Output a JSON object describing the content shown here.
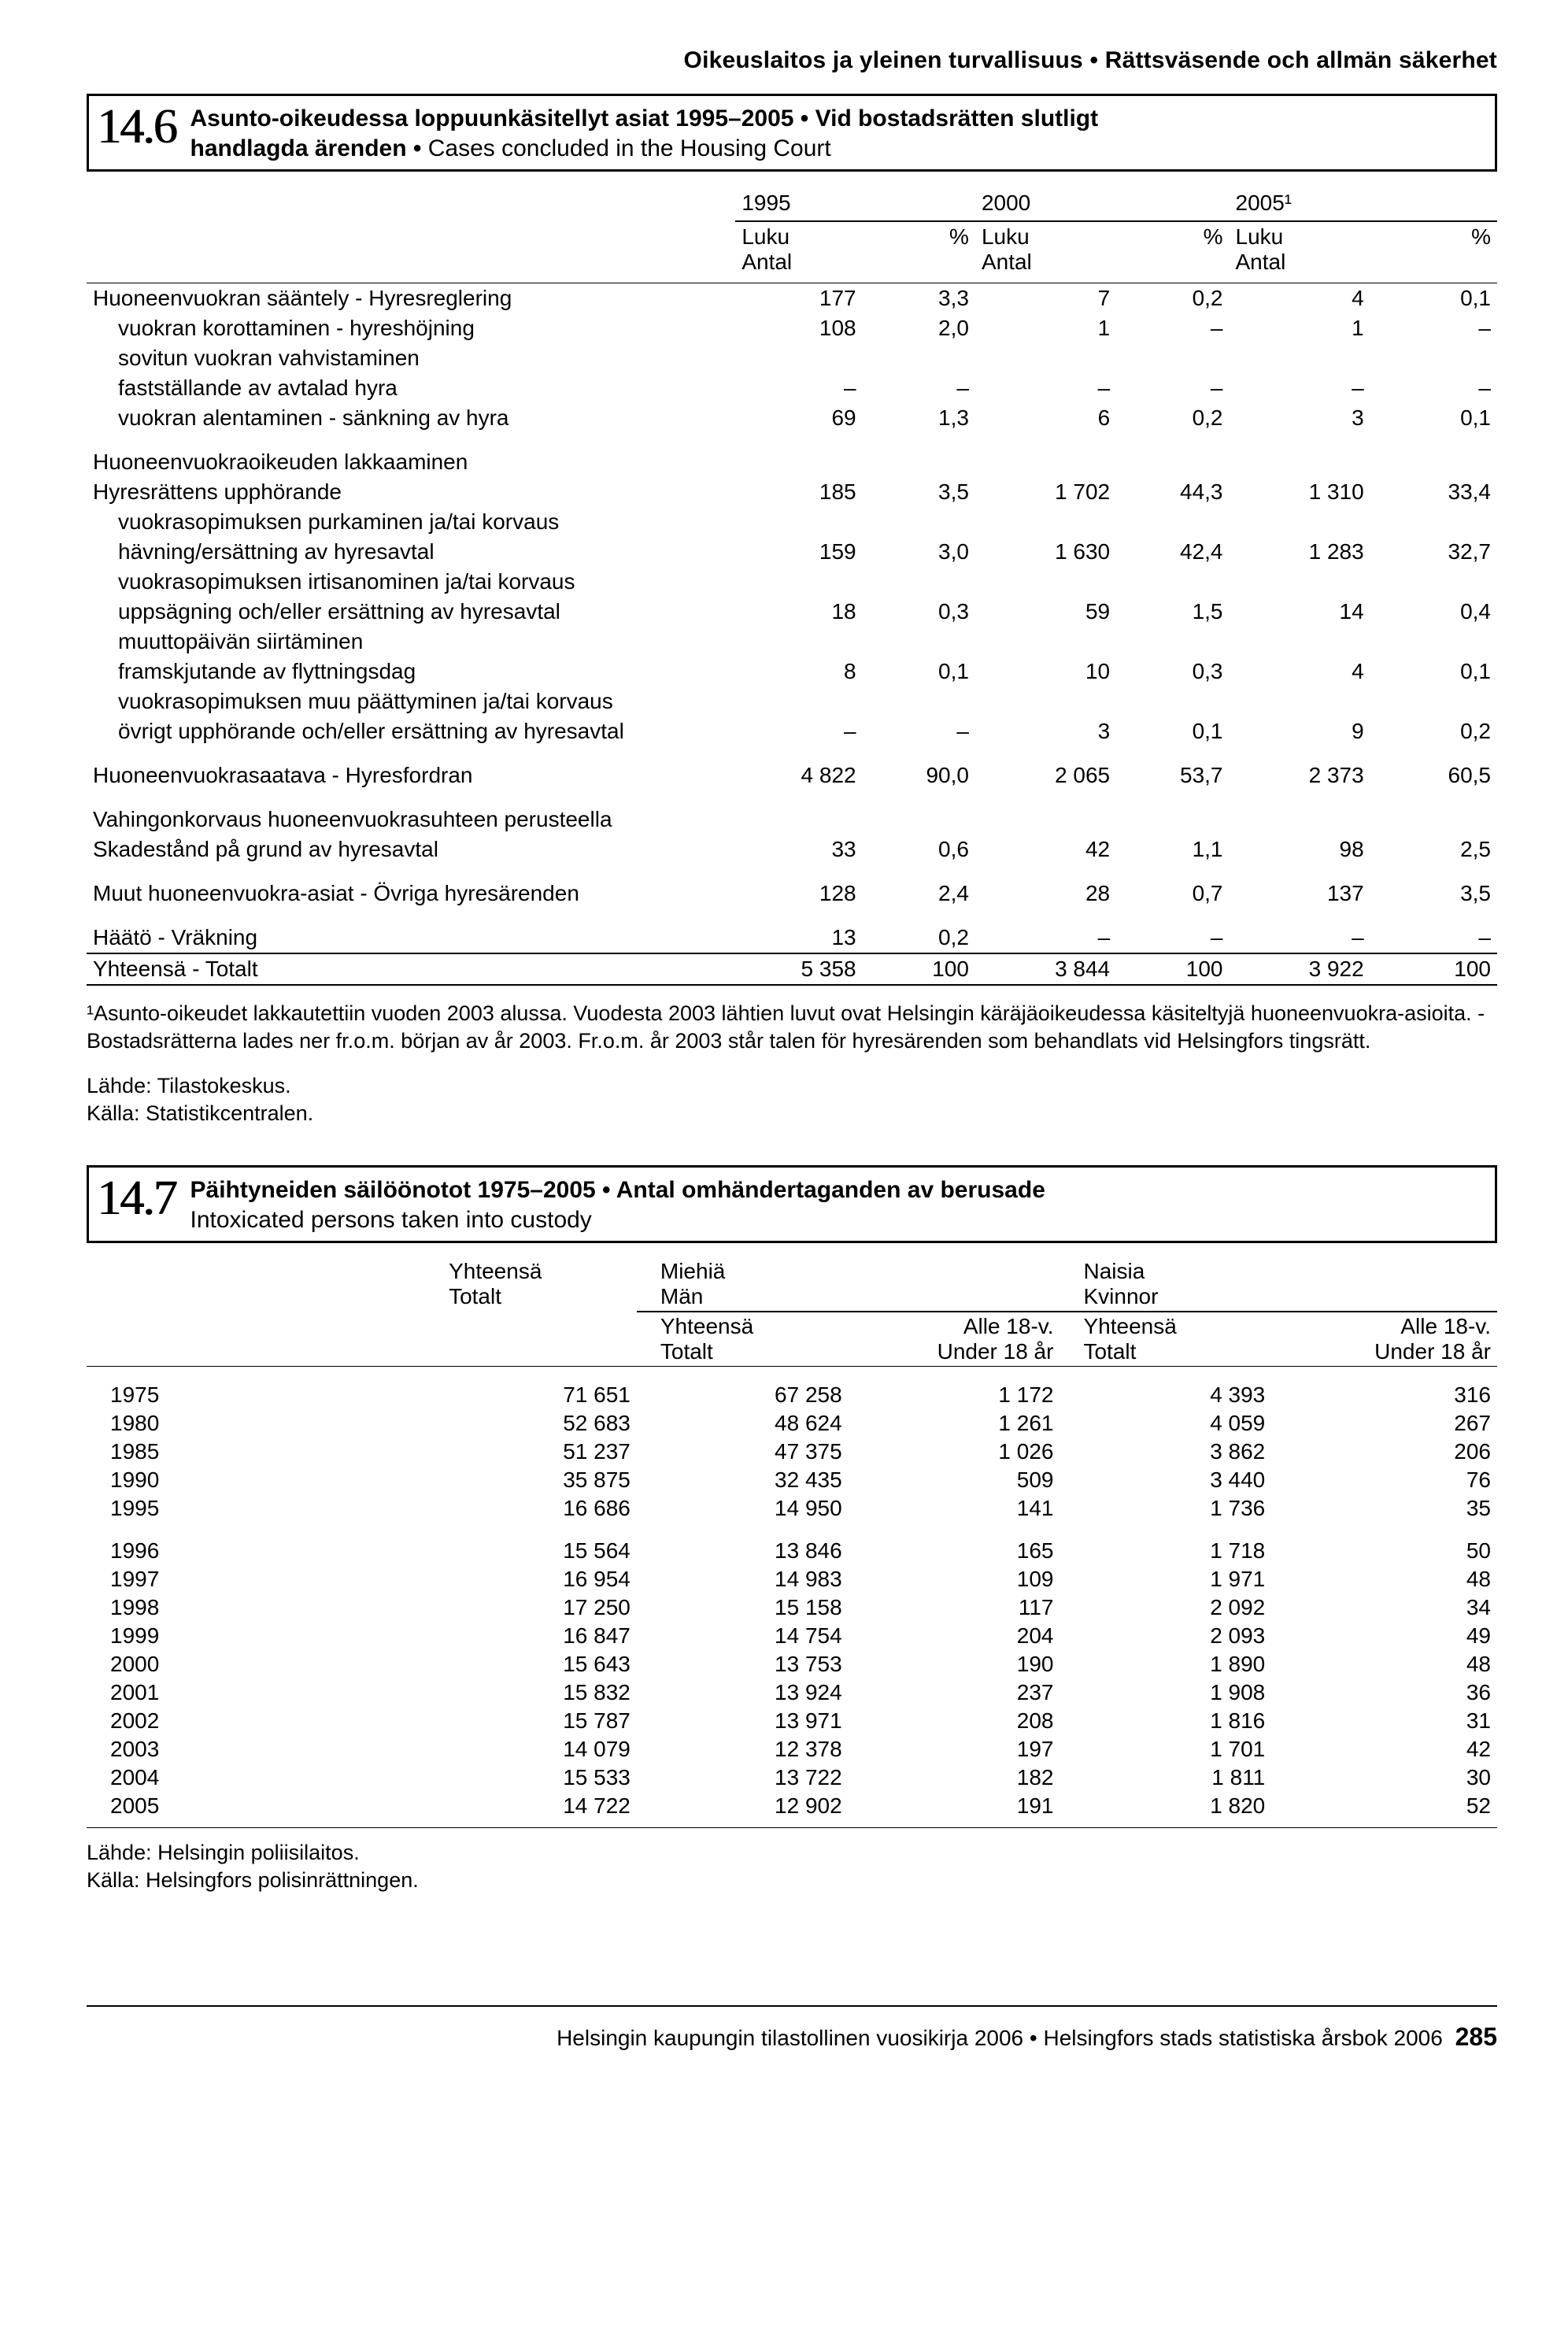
{
  "page_header": "Oikeuslaitos ja yleinen turvallisuus • Rättsväsende och allmän säkerhet",
  "section146": {
    "number": "14.6",
    "title_bold1": "Asunto-oikeudessa loppuunkäsitellyt asiat 1995–2005 • Vid bostadsrätten slutligt",
    "title_bold2": "handlagda ärenden • ",
    "title_plain": "Cases concluded in the Housing Court"
  },
  "t146": {
    "years": [
      "1995",
      "2000",
      "2005¹"
    ],
    "subhead_luku": "Luku",
    "subhead_antal": "Antal",
    "subhead_pct": "%",
    "rows": [
      {
        "label": "Huoneenvuokran sääntely - Hyresreglering",
        "indent": 0,
        "v": [
          "177",
          "3,3",
          "7",
          "0,2",
          "4",
          "0,1"
        ]
      },
      {
        "label": "vuokran korottaminen - hyreshöjning",
        "indent": 1,
        "v": [
          "108",
          "2,0",
          "1",
          "–",
          "1",
          "–"
        ]
      },
      {
        "label": "sovitun vuokran vahvistaminen",
        "indent": 1,
        "v": [
          "",
          "",
          "",
          "",
          "",
          ""
        ]
      },
      {
        "label": "fastställande av avtalad hyra",
        "indent": 1,
        "v": [
          "–",
          "–",
          "–",
          "–",
          "–",
          "–"
        ]
      },
      {
        "label": "vuokran alentaminen - sänkning av hyra",
        "indent": 1,
        "v": [
          "69",
          "1,3",
          "6",
          "0,2",
          "3",
          "0,1"
        ]
      },
      {
        "spacer": true
      },
      {
        "label": "Huoneenvuokraoikeuden lakkaaminen",
        "indent": 0,
        "v": [
          "",
          "",
          "",
          "",
          "",
          ""
        ]
      },
      {
        "label": "Hyresrättens upphörande",
        "indent": 0,
        "v": [
          "185",
          "3,5",
          "1 702",
          "44,3",
          "1 310",
          "33,4"
        ]
      },
      {
        "label": "vuokrasopimuksen purkaminen ja/tai korvaus",
        "indent": 1,
        "v": [
          "",
          "",
          "",
          "",
          "",
          ""
        ]
      },
      {
        "label": "hävning/ersättning av hyresavtal",
        "indent": 1,
        "v": [
          "159",
          "3,0",
          "1 630",
          "42,4",
          "1 283",
          "32,7"
        ]
      },
      {
        "label": "vuokrasopimuksen irtisanominen ja/tai korvaus",
        "indent": 1,
        "v": [
          "",
          "",
          "",
          "",
          "",
          ""
        ]
      },
      {
        "label": "uppsägning och/eller ersättning av hyresavtal",
        "indent": 1,
        "v": [
          "18",
          "0,3",
          "59",
          "1,5",
          "14",
          "0,4"
        ]
      },
      {
        "label": "muuttopäivän siirtäminen",
        "indent": 1,
        "v": [
          "",
          "",
          "",
          "",
          "",
          ""
        ]
      },
      {
        "label": "framskjutande av flyttningsdag",
        "indent": 1,
        "v": [
          "8",
          "0,1",
          "10",
          "0,3",
          "4",
          "0,1"
        ]
      },
      {
        "label": "vuokrasopimuksen muu päättyminen ja/tai korvaus",
        "indent": 1,
        "v": [
          "",
          "",
          "",
          "",
          "",
          ""
        ]
      },
      {
        "label": "övrigt upphörande och/eller ersättning av hyresavtal",
        "indent": 1,
        "v": [
          "–",
          "–",
          "3",
          "0,1",
          "9",
          "0,2"
        ]
      },
      {
        "spacer": true
      },
      {
        "label": "Huoneenvuokrasaatava - Hyresfordran",
        "indent": 0,
        "v": [
          "4 822",
          "90,0",
          "2 065",
          "53,7",
          "2 373",
          "60,5"
        ]
      },
      {
        "spacer": true
      },
      {
        "label": "Vahingonkorvaus huoneenvuokrasuhteen perusteella",
        "indent": 0,
        "v": [
          "",
          "",
          "",
          "",
          "",
          ""
        ]
      },
      {
        "label": "Skadestånd på grund av hyresavtal",
        "indent": 0,
        "v": [
          "33",
          "0,6",
          "42",
          "1,1",
          "98",
          "2,5"
        ]
      },
      {
        "spacer": true
      },
      {
        "label": "Muut huoneenvuokra-asiat - Övriga hyresärenden",
        "indent": 0,
        "v": [
          "128",
          "2,4",
          "28",
          "0,7",
          "137",
          "3,5"
        ]
      },
      {
        "spacer": true
      },
      {
        "label": "Häätö - Vräkning",
        "indent": 0,
        "v": [
          "13",
          "0,2",
          "–",
          "–",
          "–",
          "–"
        ]
      }
    ],
    "total": {
      "label": "Yhteensä - Totalt",
      "v": [
        "5 358",
        "100",
        "3 844",
        "100",
        "3 922",
        "100"
      ]
    }
  },
  "footnote146": "¹Asunto-oikeudet lakkautettiin vuoden 2003 alussa. Vuodesta 2003 lähtien luvut ovat Helsingin käräjäoikeudessa käsiteltyjä huoneenvuokra-asioita. - Bostadsrätterna lades ner fr.o.m. början av år 2003. Fr.o.m. år 2003 står talen för hyresärenden som behandlats vid Helsingfors tingsrätt.",
  "source146_1": "Lähde: Tilastokeskus.",
  "source146_2": "Källa: Statistikcentralen.",
  "section147": {
    "number": "14.7",
    "title_bold": "Päihtyneiden säilöönotot 1975–2005 • Antal omhändertaganden av berusade",
    "title_plain": "Intoxicated persons taken into custody"
  },
  "t147": {
    "head_total": "Yhteensä",
    "head_total2": "Totalt",
    "head_men": "Miehiä",
    "head_men2": "Män",
    "head_women": "Naisia",
    "head_women2": "Kvinnor",
    "sub_total": "Yhteensä",
    "sub_total2": "Totalt",
    "sub_u18a": "Alle 18-v.",
    "sub_u18b": "Under 18 år",
    "block1": [
      {
        "y": "1975",
        "v": [
          "71 651",
          "67 258",
          "1 172",
          "4 393",
          "316"
        ]
      },
      {
        "y": "1980",
        "v": [
          "52 683",
          "48 624",
          "1 261",
          "4 059",
          "267"
        ]
      },
      {
        "y": "1985",
        "v": [
          "51 237",
          "47 375",
          "1 026",
          "3 862",
          "206"
        ]
      },
      {
        "y": "1990",
        "v": [
          "35 875",
          "32 435",
          "509",
          "3 440",
          "76"
        ]
      },
      {
        "y": "1995",
        "v": [
          "16 686",
          "14 950",
          "141",
          "1 736",
          "35"
        ]
      }
    ],
    "block2": [
      {
        "y": "1996",
        "v": [
          "15 564",
          "13 846",
          "165",
          "1 718",
          "50"
        ]
      },
      {
        "y": "1997",
        "v": [
          "16 954",
          "14 983",
          "109",
          "1 971",
          "48"
        ]
      },
      {
        "y": "1998",
        "v": [
          "17 250",
          "15 158",
          "117",
          "2 092",
          "34"
        ]
      },
      {
        "y": "1999",
        "v": [
          "16 847",
          "14 754",
          "204",
          "2 093",
          "49"
        ]
      },
      {
        "y": "2000",
        "v": [
          "15 643",
          "13 753",
          "190",
          "1 890",
          "48"
        ]
      },
      {
        "y": "2001",
        "v": [
          "15 832",
          "13 924",
          "237",
          "1 908",
          "36"
        ]
      },
      {
        "y": "2002",
        "v": [
          "15 787",
          "13 971",
          "208",
          "1 816",
          "31"
        ]
      },
      {
        "y": "2003",
        "v": [
          "14 079",
          "12 378",
          "197",
          "1 701",
          "42"
        ]
      },
      {
        "y": "2004",
        "v": [
          "15 533",
          "13 722",
          "182",
          "1 811",
          "30"
        ]
      },
      {
        "y": "2005",
        "v": [
          "14 722",
          "12 902",
          "191",
          "1 820",
          "52"
        ]
      }
    ]
  },
  "source147_1": "Lähde: Helsingin poliisilaitos.",
  "source147_2": "Källa: Helsingfors polisinrättningen.",
  "footer_text": "Helsingin kaupungin tilastollinen vuosikirja 2006 • Helsingfors stads statistiska årsbok 2006",
  "footer_page": "285"
}
